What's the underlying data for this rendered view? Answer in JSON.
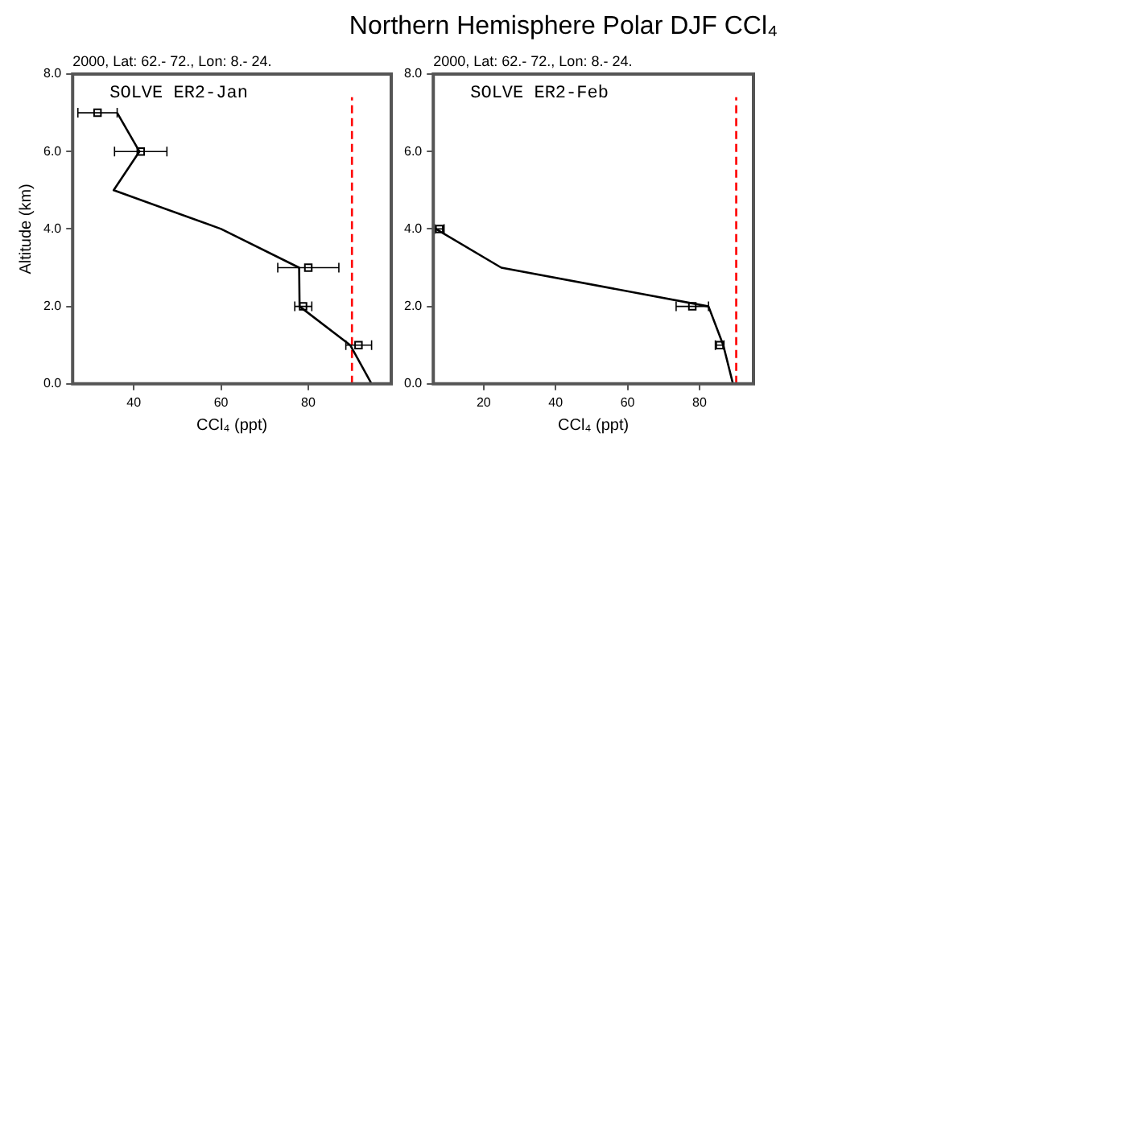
{
  "chart_data": [
    {
      "type": "line",
      "subtitle": "2000, Lat: 62.- 72., Lon: 8.- 24.",
      "xlabel": "CCl₄ (ppt)",
      "ylabel": "Altitude (km)",
      "annotations": [
        "SOLVE ER2-Jan"
      ],
      "xlim": [
        26,
        99
      ],
      "xticks": [
        40,
        60,
        80
      ],
      "ylim": [
        0,
        8
      ],
      "yticks": [
        {
          "value": 0,
          "label": "0.0"
        },
        {
          "value": 2,
          "label": "2.0"
        },
        {
          "value": 4,
          "label": "4.0"
        },
        {
          "value": 6,
          "label": "6.0"
        },
        {
          "value": 8,
          "label": "8.0"
        }
      ],
      "grid": false,
      "legend": false,
      "series": [
        {
          "type": "line",
          "color": "#000000",
          "x": [
            94.5,
            89.6,
            78,
            77.9,
            60,
            35.4,
            41.3,
            36.2
          ],
          "values": [
            0,
            1,
            2,
            3,
            4,
            5,
            6,
            7
          ]
        },
        {
          "type": "scatter",
          "color": "#000000",
          "marker": "square",
          "x": [
            91.5,
            78.8,
            80,
            41.6,
            31.7
          ],
          "values": [
            1,
            2,
            3,
            6,
            7
          ],
          "xerrors": [
            [
              88.6,
              94.5
            ],
            [
              76.9,
              80.8
            ],
            [
              73,
              87
            ],
            [
              35.6,
              47.6
            ],
            [
              27.2,
              36.2
            ]
          ]
        },
        {
          "type": "line",
          "color": "#ff0000",
          "line_style": "dashed",
          "x": [
            90,
            90
          ],
          "values": [
            0,
            7.4
          ]
        }
      ]
    },
    {
      "type": "line",
      "title": "Northern Hemisphere Polar DJF CCl₄",
      "subtitle": "2000, Lat: 62.- 72., Lon: 8.- 24.",
      "xlabel": "CCl₄ (ppt)",
      "annotations": [
        "SOLVE ER2-Feb"
      ],
      "xlim": [
        6,
        95
      ],
      "xticks": [
        20,
        40,
        60,
        80
      ],
      "ylim": [
        0,
        8
      ],
      "yticks": [
        {
          "value": 0,
          "label": "0.0"
        },
        {
          "value": 2,
          "label": "2.0"
        },
        {
          "value": 4,
          "label": "4.0"
        },
        {
          "value": 6,
          "label": "6.0"
        },
        {
          "value": 8,
          "label": "8.0"
        }
      ],
      "grid": false,
      "legend": false,
      "series": [
        {
          "type": "line",
          "color": "#000000",
          "x": [
            89.3,
            86.6,
            82.5,
            24.9,
            6.7
          ],
          "values": [
            0,
            1,
            2,
            3,
            4
          ]
        },
        {
          "type": "scatter",
          "color": "#000000",
          "marker": "square",
          "x": [
            85.6,
            78,
            7.7
          ],
          "values": [
            1,
            2,
            4
          ],
          "xerrors": [
            [
              84.4,
              86.8
            ],
            [
              73.5,
              82.5
            ],
            [
              6.4,
              9.0
            ]
          ]
        },
        {
          "type": "line",
          "color": "#ff0000",
          "line_style": "dashed",
          "x": [
            90.2,
            90.2
          ],
          "values": [
            0,
            7.4
          ]
        }
      ]
    }
  ]
}
